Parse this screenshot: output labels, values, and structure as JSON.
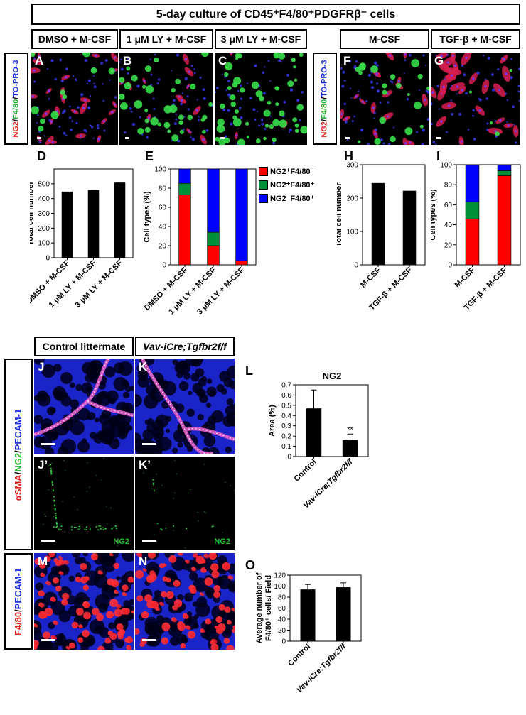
{
  "figure": {
    "title": "5-day culture of CD45⁺F4/80⁺PDGFRβ⁻ cells",
    "conditions": {
      "A": "DMSO + M-CSF",
      "B": "1 μM LY + M-CSF",
      "C": "3 μM LY + M-CSF",
      "F": "M-CSF",
      "G": "TGF-β + M-CSF"
    },
    "stain_labels": {
      "top": [
        "NG2",
        "/",
        "F4/80",
        "/",
        "TO-PRO-3"
      ],
      "middle": [
        "αSMA",
        "/",
        "NG2",
        "/",
        "PECAM-1"
      ],
      "bottom": [
        "F4/80",
        "/",
        "PECAM-1"
      ]
    },
    "stain_colors": {
      "red": "#e02020",
      "green": "#20b030",
      "blue": "#1a2ee0"
    },
    "tissue_headers": {
      "control": "Control littermate",
      "mutant": "Vav-iCre;Tgfbr2f/f"
    },
    "panel_letters": [
      "A",
      "B",
      "C",
      "F",
      "G",
      "J",
      "K",
      "J’",
      "K’",
      "M",
      "N"
    ],
    "inset_labels": {
      "J’": "NG2",
      "K’": "NG2"
    },
    "chart_letters": [
      "D",
      "E",
      "H",
      "I",
      "L",
      "O"
    ],
    "legend_E": [
      "NG2⁺F4/80⁻",
      "NG2⁺F4/80⁺",
      "NG2⁻F4/80⁺"
    ],
    "legend_colors": [
      "#ff0000",
      "#008f39",
      "#0000ff"
    ]
  },
  "chart_data": [
    {
      "id": "D",
      "type": "bar",
      "categories": [
        "DMSO + M-CSF",
        "1 μM LY + M-CSF",
        "3 μM LY + M-CSF"
      ],
      "values": [
        447,
        458,
        508
      ],
      "ylabel": "Total cell number",
      "ylim": [
        0,
        600
      ],
      "yticks": [
        0,
        100,
        200,
        300,
        400,
        500
      ]
    },
    {
      "id": "E",
      "type": "bar",
      "categories": [
        "DMSO + M-CSF",
        "1 μM LY + M-CSF",
        "3 μM LY + M-CSF"
      ],
      "stacked": true,
      "series": [
        {
          "name": "NG2⁺F4/80⁻",
          "color": "#ff0000",
          "values": [
            73,
            20,
            4
          ]
        },
        {
          "name": "NG2⁺F4/80⁺",
          "color": "#008f39",
          "values": [
            12,
            14,
            0
          ]
        },
        {
          "name": "NG2⁻F4/80⁺",
          "color": "#0000ff",
          "values": [
            15,
            66,
            96
          ]
        }
      ],
      "ylabel": "Cell types (%)",
      "ylim": [
        0,
        100
      ],
      "yticks": [
        0,
        20,
        40,
        60,
        80,
        100
      ]
    },
    {
      "id": "H",
      "type": "bar",
      "categories": [
        "M-CSF",
        "TGF-β + M-CSF"
      ],
      "values": [
        245,
        222
      ],
      "ylabel": "Total cell number",
      "ylim": [
        0,
        300
      ],
      "yticks": [
        0,
        100,
        200,
        300
      ]
    },
    {
      "id": "I",
      "type": "bar",
      "categories": [
        "M-CSF",
        "TGF-β + M-CSF"
      ],
      "stacked": true,
      "series": [
        {
          "name": "NG2⁺F4/80⁻",
          "color": "#ff0000",
          "values": [
            46,
            89
          ]
        },
        {
          "name": "NG2⁺F4/80⁺",
          "color": "#008f39",
          "values": [
            17,
            5
          ]
        },
        {
          "name": "NG2⁻F4/80⁺",
          "color": "#0000ff",
          "values": [
            37,
            6
          ]
        }
      ],
      "ylabel": "Cell types (%)",
      "ylim": [
        0,
        100
      ],
      "yticks": [
        0,
        20,
        40,
        60,
        80,
        100
      ]
    },
    {
      "id": "L",
      "type": "bar",
      "title": "NG2",
      "categories": [
        "Control",
        "Vav-iCre;Tgfbr2f/f"
      ],
      "values": [
        0.47,
        0.16
      ],
      "errors": [
        0.18,
        0.06
      ],
      "significance": [
        "",
        "**"
      ],
      "ylabel": "Area (%)",
      "ylim": [
        0,
        0.7
      ],
      "yticks": [
        0,
        0.1,
        0.2,
        0.3,
        0.4,
        0.5,
        0.6,
        0.7
      ]
    },
    {
      "id": "O",
      "type": "bar",
      "categories": [
        "Control",
        "Vav-iCre;Tgfbr2f/f"
      ],
      "values": [
        94,
        98
      ],
      "errors": [
        9,
        8
      ],
      "ylabel": "Average number of F4/80⁺ cells/ Field",
      "ylim": [
        0,
        120
      ],
      "yticks": [
        0,
        20,
        40,
        60,
        80,
        100,
        120
      ]
    }
  ]
}
